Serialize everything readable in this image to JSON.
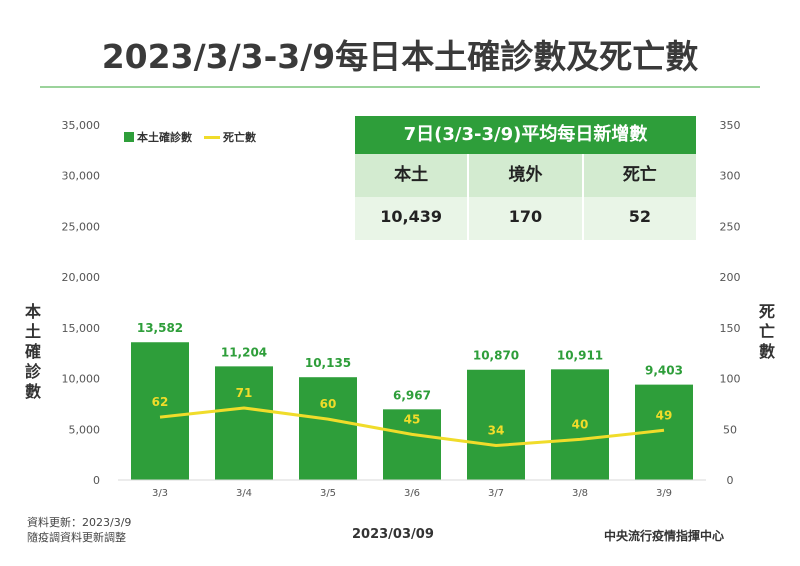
{
  "title": "2023/3/3-3/9每日本土確診數及死亡數",
  "summary_box": {
    "heading": "7日(3/3-3/9)平均每日新增數",
    "columns": [
      "本土",
      "境外",
      "死亡"
    ],
    "values": [
      "10,439",
      "170",
      "52"
    ]
  },
  "footer": {
    "note_line1": "資料更新：2023/3/9",
    "note_line2": "隨疫調資料更新調整",
    "date": "2023/03/09",
    "org": "中央流行疫情指揮中心"
  },
  "colors": {
    "bar": "#2e9e3a",
    "line": "#f0dc2a",
    "bar_label": "#2e9e3a",
    "line_label": "#f0dc2a"
  },
  "chart_data": {
    "type": "bar",
    "categories": [
      "3/3",
      "3/4",
      "3/5",
      "3/6",
      "3/7",
      "3/8",
      "3/9"
    ],
    "series": [
      {
        "name": "本土確診數",
        "type": "bar",
        "axis": "left",
        "values": [
          13582,
          11204,
          10135,
          6967,
          10870,
          10911,
          9403
        ],
        "labels": [
          "13,582",
          "11,204",
          "10,135",
          "6,967",
          "10,870",
          "10,911",
          "9,403"
        ]
      },
      {
        "name": "死亡數",
        "type": "line",
        "axis": "right",
        "values": [
          62,
          71,
          60,
          45,
          34,
          40,
          49
        ],
        "labels": [
          "62",
          "71",
          "60",
          "45",
          "34",
          "40",
          "49"
        ]
      }
    ],
    "ylabel": "本土確診數",
    "y2label": "死亡數",
    "ylim": [
      0,
      35000
    ],
    "y2lim": [
      0,
      350
    ],
    "yticks": [
      "0",
      "5,000",
      "10,000",
      "15,000",
      "20,000",
      "25,000",
      "30,000",
      "35,000"
    ],
    "y2ticks": [
      "0",
      "50",
      "100",
      "150",
      "200",
      "250",
      "300",
      "350"
    ],
    "legend": "top-left",
    "grid": false
  }
}
